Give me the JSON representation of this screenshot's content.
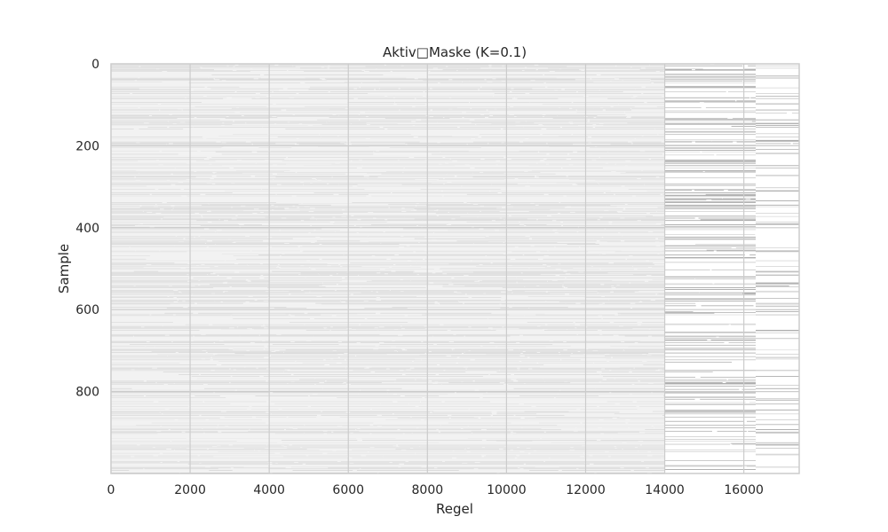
{
  "chart_data": {
    "type": "heatmap",
    "title": "Aktiv□Maske (K=0.1)",
    "xlabel": "Regel",
    "ylabel": "Sample",
    "xlim": [
      0,
      17400
    ],
    "ylim": [
      1000,
      0
    ],
    "x_ticks": [
      0,
      2000,
      4000,
      6000,
      8000,
      10000,
      12000,
      14000,
      16000
    ],
    "y_ticks": [
      0,
      200,
      400,
      600,
      800
    ],
    "grid": true,
    "colors": {
      "background": "#f2f2f2",
      "active_mark": "#5a5a5a",
      "grid": "#cccccc",
      "frame": "#cccccc"
    },
    "regions": [
      {
        "x_start": 0,
        "x_end": 14000,
        "density": "dense",
        "row_fraction": 0.55
      },
      {
        "x_start": 14000,
        "x_end": 16300,
        "density": "sparse",
        "row_fraction": 0.35
      },
      {
        "x_start": 16300,
        "x_end": 17400,
        "density": "sparse",
        "row_fraction": 0.22
      }
    ],
    "n_samples": 1000
  }
}
